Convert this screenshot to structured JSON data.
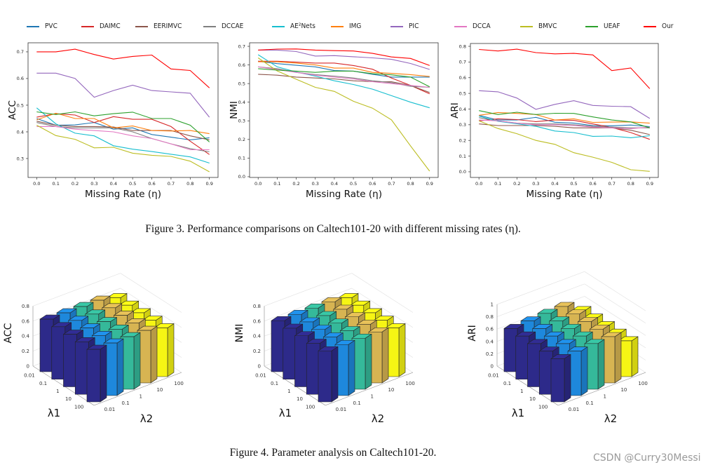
{
  "legend": [
    {
      "name": "PVC",
      "color": "#1f77b4"
    },
    {
      "name": "DAIMC",
      "color": "#d62728"
    },
    {
      "name": "EERIMVC",
      "color": "#8c564b"
    },
    {
      "name": "DCCAE",
      "color": "#7f7f7f"
    },
    {
      "name": "AE²Nets",
      "color": "#17becf"
    },
    {
      "name": "IMG",
      "color": "#ff7f0e"
    },
    {
      "name": "PIC",
      "color": "#9467bd"
    },
    {
      "name": "DCCA",
      "color": "#e377c2"
    },
    {
      "name": "BMVC",
      "color": "#bcbd22"
    },
    {
      "name": "UEAF",
      "color": "#2ca02c"
    },
    {
      "name": "Our",
      "color": "#ff0000"
    }
  ],
  "figure3_caption": "Figure 3.  Performance comparisons on Caltech101-20 with different missing rates (η).",
  "figure4_caption": "Figure 4. Parameter analysis on Caltech101-20.",
  "watermark": "CSDN @Curry30Messi",
  "chart_data": [
    {
      "type": "line",
      "ylabel": "ACC",
      "xlabel": "Missing Rate (η)",
      "x": [
        0.0,
        0.1,
        0.2,
        0.3,
        0.4,
        0.5,
        0.6,
        0.7,
        0.8,
        0.9
      ],
      "xticks": [
        "0.0",
        "0.1",
        "0.2",
        "0.3",
        "0.4",
        "0.5",
        "0.6",
        "0.7",
        "0.8",
        "0.9"
      ],
      "yticks": [
        "0.3",
        "0.4",
        "0.5",
        "0.6",
        "0.7"
      ],
      "ylim": [
        0.229,
        0.734
      ],
      "grid": false,
      "series": [
        {
          "name": "PVC",
          "values": [
            0.45,
            0.425,
            0.426,
            0.435,
            0.41,
            0.415,
            0.39,
            0.38,
            0.37,
            0.378
          ]
        },
        {
          "name": "DAIMC",
          "values": [
            0.455,
            0.468,
            0.463,
            0.435,
            0.457,
            0.447,
            0.447,
            0.42,
            0.365,
            0.315
          ]
        },
        {
          "name": "EERIMVC",
          "values": [
            0.44,
            0.425,
            0.42,
            0.42,
            0.418,
            0.405,
            0.405,
            0.405,
            0.385,
            0.37
          ]
        },
        {
          "name": "DCCAE",
          "values": [
            0.435,
            0.42,
            0.415,
            0.415,
            0.415,
            0.4,
            0.375,
            0.355,
            0.337,
            0.325
          ]
        },
        {
          "name": "AE²Nets",
          "values": [
            0.49,
            0.43,
            0.395,
            0.385,
            0.348,
            0.335,
            0.326,
            0.316,
            0.306,
            0.283
          ]
        },
        {
          "name": "IMG",
          "values": [
            0.445,
            0.47,
            0.45,
            0.45,
            0.415,
            0.422,
            0.405,
            0.403,
            0.405,
            0.393
          ]
        },
        {
          "name": "PIC",
          "values": [
            0.62,
            0.62,
            0.6,
            0.53,
            0.555,
            0.575,
            0.555,
            0.55,
            0.545,
            0.455
          ]
        },
        {
          "name": "DCCA",
          "values": [
            0.42,
            0.42,
            0.41,
            0.405,
            0.4,
            0.385,
            0.375,
            0.355,
            0.333,
            0.333
          ]
        },
        {
          "name": "BMVC",
          "values": [
            0.425,
            0.386,
            0.372,
            0.34,
            0.342,
            0.32,
            0.312,
            0.308,
            0.29,
            0.25
          ]
        },
        {
          "name": "UEAF",
          "values": [
            0.475,
            0.465,
            0.475,
            0.46,
            0.468,
            0.474,
            0.45,
            0.45,
            0.425,
            0.362
          ]
        },
        {
          "name": "Our",
          "values": [
            0.7,
            0.7,
            0.71,
            0.69,
            0.673,
            0.683,
            0.688,
            0.636,
            0.63,
            0.565
          ]
        }
      ]
    },
    {
      "type": "line",
      "ylabel": "NMI",
      "xlabel": "Missing Rate (η)",
      "x": [
        0.0,
        0.1,
        0.2,
        0.3,
        0.4,
        0.5,
        0.6,
        0.7,
        0.8,
        0.9
      ],
      "xticks": [
        "0.0",
        "0.1",
        "0.2",
        "0.3",
        "0.4",
        "0.5",
        "0.6",
        "0.7",
        "0.8",
        "0.9"
      ],
      "yticks": [
        "0.0",
        "0.1",
        "0.2",
        "0.3",
        "0.4",
        "0.5",
        "0.6",
        "0.7"
      ],
      "ylim": [
        -0.004,
        0.719
      ],
      "grid": false,
      "series": [
        {
          "name": "PVC",
          "values": [
            0.62,
            0.607,
            0.598,
            0.59,
            0.57,
            0.567,
            0.55,
            0.535,
            0.535,
            0.535
          ]
        },
        {
          "name": "DAIMC",
          "values": [
            0.62,
            0.62,
            0.615,
            0.61,
            0.61,
            0.597,
            0.577,
            0.53,
            0.49,
            0.445
          ]
        },
        {
          "name": "EERIMVC",
          "values": [
            0.55,
            0.545,
            0.535,
            0.53,
            0.525,
            0.515,
            0.51,
            0.51,
            0.49,
            0.452
          ]
        },
        {
          "name": "DCCAE",
          "values": [
            0.59,
            0.58,
            0.56,
            0.548,
            0.54,
            0.53,
            0.515,
            0.505,
            0.485,
            0.48
          ]
        },
        {
          "name": "AE²Nets",
          "values": [
            0.655,
            0.59,
            0.562,
            0.54,
            0.515,
            0.495,
            0.47,
            0.435,
            0.4,
            0.37
          ]
        },
        {
          "name": "IMG",
          "values": [
            0.617,
            0.617,
            0.61,
            0.6,
            0.583,
            0.583,
            0.56,
            0.555,
            0.548,
            0.538
          ]
        },
        {
          "name": "PIC",
          "values": [
            0.68,
            0.68,
            0.672,
            0.648,
            0.65,
            0.644,
            0.638,
            0.63,
            0.608,
            0.576
          ]
        },
        {
          "name": "DCCA",
          "values": [
            0.59,
            0.575,
            0.56,
            0.545,
            0.535,
            0.525,
            0.51,
            0.5,
            0.49,
            0.48
          ]
        },
        {
          "name": "BMVC",
          "values": [
            0.638,
            0.568,
            0.523,
            0.48,
            0.458,
            0.405,
            0.368,
            0.305,
            0.165,
            0.03
          ]
        },
        {
          "name": "UEAF",
          "values": [
            0.58,
            0.572,
            0.567,
            0.56,
            0.567,
            0.567,
            0.553,
            0.547,
            0.535,
            0.483
          ]
        },
        {
          "name": "Our",
          "values": [
            0.68,
            0.685,
            0.686,
            0.68,
            0.677,
            0.675,
            0.662,
            0.643,
            0.635,
            0.597
          ]
        }
      ]
    },
    {
      "type": "line",
      "ylabel": "ARI",
      "xlabel": "Missing Rate (η)",
      "x": [
        0.0,
        0.1,
        0.2,
        0.3,
        0.4,
        0.5,
        0.6,
        0.7,
        0.8,
        0.9
      ],
      "xticks": [
        "0.0",
        "0.1",
        "0.2",
        "0.3",
        "0.4",
        "0.5",
        "0.6",
        "0.7",
        "0.8",
        "0.9"
      ],
      "yticks": [
        "0.0",
        "0.1",
        "0.2",
        "0.3",
        "0.4",
        "0.5",
        "0.6",
        "0.7",
        "0.8"
      ],
      "ylim": [
        -0.036,
        0.818
      ],
      "grid": false,
      "series": [
        {
          "name": "PVC",
          "values": [
            0.36,
            0.33,
            0.33,
            0.347,
            0.316,
            0.31,
            0.295,
            0.293,
            0.298,
            0.288
          ]
        },
        {
          "name": "DAIMC",
          "values": [
            0.325,
            0.338,
            0.333,
            0.32,
            0.33,
            0.328,
            0.305,
            0.283,
            0.25,
            0.207
          ]
        },
        {
          "name": "EERIMVC",
          "values": [
            0.305,
            0.295,
            0.295,
            0.295,
            0.29,
            0.28,
            0.28,
            0.28,
            0.265,
            0.237
          ]
        },
        {
          "name": "DCCAE",
          "values": [
            0.345,
            0.325,
            0.31,
            0.305,
            0.305,
            0.3,
            0.29,
            0.285,
            0.28,
            0.28
          ]
        },
        {
          "name": "AE²Nets",
          "values": [
            0.355,
            0.322,
            0.306,
            0.29,
            0.26,
            0.25,
            0.226,
            0.228,
            0.217,
            0.23
          ]
        },
        {
          "name": "IMG",
          "values": [
            0.36,
            0.378,
            0.372,
            0.365,
            0.33,
            0.338,
            0.315,
            0.317,
            0.318,
            0.31
          ]
        },
        {
          "name": "PIC",
          "values": [
            0.517,
            0.51,
            0.47,
            0.398,
            0.43,
            0.453,
            0.423,
            0.418,
            0.415,
            0.34
          ]
        },
        {
          "name": "DCCA",
          "values": [
            0.33,
            0.325,
            0.31,
            0.3,
            0.3,
            0.295,
            0.285,
            0.28,
            0.275,
            0.285
          ]
        },
        {
          "name": "BMVC",
          "values": [
            0.325,
            0.276,
            0.243,
            0.2,
            0.175,
            0.122,
            0.093,
            0.06,
            0.013,
            0.003
          ]
        },
        {
          "name": "UEAF",
          "values": [
            0.39,
            0.365,
            0.38,
            0.365,
            0.373,
            0.372,
            0.35,
            0.33,
            0.318,
            0.28
          ]
        },
        {
          "name": "Our",
          "values": [
            0.78,
            0.77,
            0.782,
            0.76,
            0.752,
            0.755,
            0.745,
            0.645,
            0.662,
            0.53
          ]
        }
      ]
    },
    {
      "type": "bar3d",
      "zlabel": "ACC",
      "xlabel": "λ1",
      "ylabel": "λ2",
      "lambda1": [
        "0.01",
        "0.1",
        "1",
        "10",
        "100"
      ],
      "lambda2": [
        "0.01",
        "0.1",
        "1",
        "10",
        "100"
      ],
      "zticks": [
        "0",
        "0.2",
        "0.4",
        "0.6",
        "0.8"
      ],
      "zlim": [
        0,
        0.8
      ],
      "colors": [
        "#2d2a8a",
        "#1e88dc",
        "#35b99a",
        "#d7b452",
        "#f6f514"
      ],
      "values": [
        [
          0.7,
          0.7,
          0.7,
          0.7,
          0.65
        ],
        [
          0.7,
          0.7,
          0.7,
          0.7,
          0.65
        ],
        [
          0.7,
          0.7,
          0.7,
          0.7,
          0.65
        ],
        [
          0.7,
          0.7,
          0.7,
          0.7,
          0.65
        ],
        [
          0.7,
          0.7,
          0.7,
          0.7,
          0.65
        ]
      ]
    },
    {
      "type": "bar3d",
      "zlabel": "NMI",
      "xlabel": "λ1",
      "ylabel": "λ2",
      "lambda1": [
        "0.01",
        "0.1",
        "1",
        "10",
        "100"
      ],
      "lambda2": [
        "0.01",
        "0.1",
        "1",
        "10",
        "100"
      ],
      "zticks": [
        "0",
        "0.2",
        "0.4",
        "0.6",
        "0.8"
      ],
      "zlim": [
        0,
        0.8
      ],
      "colors": [
        "#2d2a8a",
        "#1e88dc",
        "#35b99a",
        "#d7b452",
        "#f6f514"
      ],
      "values": [
        [
          0.68,
          0.68,
          0.68,
          0.68,
          0.65
        ],
        [
          0.68,
          0.68,
          0.68,
          0.68,
          0.65
        ],
        [
          0.68,
          0.68,
          0.68,
          0.68,
          0.65
        ],
        [
          0.68,
          0.68,
          0.68,
          0.68,
          0.65
        ],
        [
          0.68,
          0.68,
          0.68,
          0.68,
          0.65
        ]
      ]
    },
    {
      "type": "bar3d",
      "zlabel": "ARI",
      "xlabel": "λ1",
      "ylabel": "λ2",
      "lambda1": [
        "0.01",
        "0.1",
        "1",
        "10",
        "100"
      ],
      "lambda2": [
        "0.01",
        "0.1",
        "1",
        "10",
        "100"
      ],
      "zticks": [
        "0",
        "0.2",
        "0.4",
        "0.6",
        "0.8",
        "1"
      ],
      "zlim": [
        0,
        1
      ],
      "colors": [
        "#2d2a8a",
        "#1e88dc",
        "#35b99a",
        "#d7b452",
        "#f6f514"
      ],
      "values": [
        [
          0.7,
          0.72,
          0.74,
          0.75,
          0.58
        ],
        [
          0.7,
          0.72,
          0.74,
          0.75,
          0.58
        ],
        [
          0.7,
          0.72,
          0.74,
          0.75,
          0.58
        ],
        [
          0.7,
          0.72,
          0.74,
          0.75,
          0.58
        ],
        [
          0.7,
          0.72,
          0.74,
          0.75,
          0.58
        ]
      ]
    }
  ]
}
